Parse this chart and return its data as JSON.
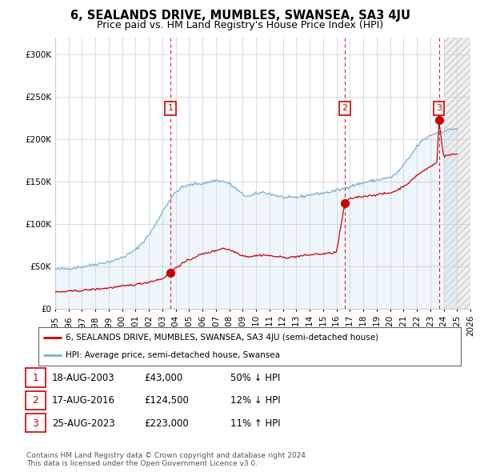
{
  "title": "6, SEALANDS DRIVE, MUMBLES, SWANSEA, SA3 4JU",
  "subtitle": "Price paid vs. HM Land Registry's House Price Index (HPI)",
  "xlim_start": 1995.0,
  "xlim_end": 2026.0,
  "ylim": [
    0,
    320000
  ],
  "yticks": [
    0,
    50000,
    100000,
    150000,
    200000,
    250000,
    300000
  ],
  "ytick_labels": [
    "£0",
    "£50K",
    "£100K",
    "£150K",
    "£200K",
    "£250K",
    "£300K"
  ],
  "sale_dates": [
    2003.62,
    2016.62,
    2023.65
  ],
  "sale_prices": [
    43000,
    124500,
    223000
  ],
  "sale_labels": [
    "1",
    "2",
    "3"
  ],
  "hpi_color": "#7ab0d4",
  "price_color": "#cc0000",
  "background_color": "#ffffff",
  "grid_color": "#cccccc",
  "hatch_start": 2024.0,
  "legend1": "6, SEALANDS DRIVE, MUMBLES, SWANSEA, SA3 4JU (semi-detached house)",
  "legend2": "HPI: Average price, semi-detached house, Swansea",
  "table_rows": [
    {
      "num": "1",
      "date": "18-AUG-2003",
      "price": "£43,000",
      "hpi": "50% ↓ HPI"
    },
    {
      "num": "2",
      "date": "17-AUG-2016",
      "price": "£124,500",
      "hpi": "12% ↓ HPI"
    },
    {
      "num": "3",
      "date": "25-AUG-2023",
      "price": "£223,000",
      "hpi": "11% ↑ HPI"
    }
  ],
  "footnote": "Contains HM Land Registry data © Crown copyright and database right 2024.\nThis data is licensed under the Open Government Licence v3.0.",
  "title_fontsize": 10.5,
  "subtitle_fontsize": 9,
  "tick_fontsize": 7.5
}
